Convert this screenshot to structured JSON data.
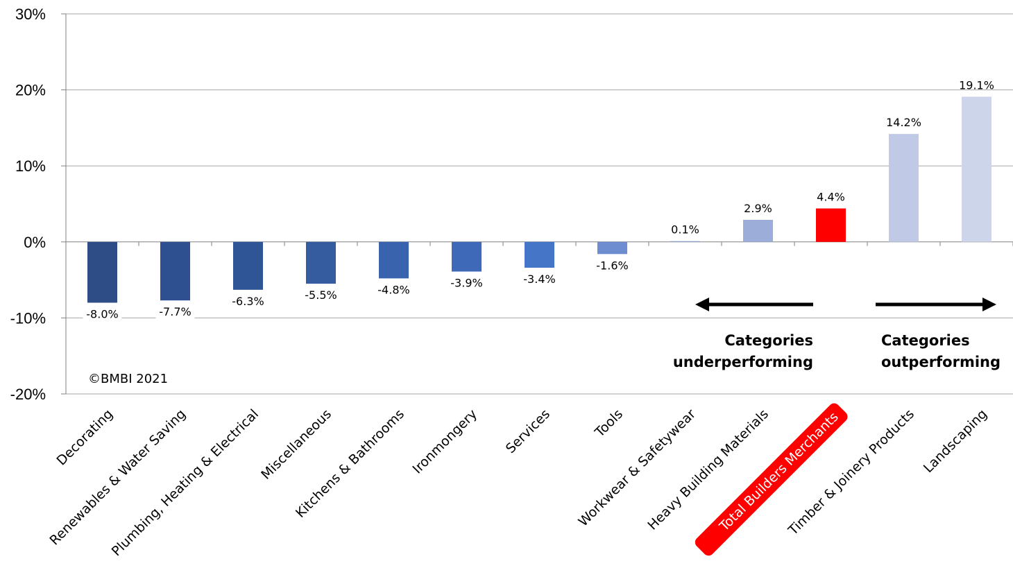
{
  "chart_data": {
    "type": "bar",
    "categories": [
      "Decorating",
      "Renewables & Water Saving",
      "Plumbing, Heating & Electrical",
      "Miscellaneous",
      "Kitchens & Bathrooms",
      "Ironmongery",
      "Services",
      "Tools",
      "Workwear & Safetywear",
      "Heavy Building Materials",
      "Total Builders Merchants",
      "Timber & Joinery Products",
      "Landscaping"
    ],
    "values": [
      -8.0,
      -7.7,
      -6.3,
      -5.5,
      -4.8,
      -3.9,
      -3.4,
      -1.6,
      0.1,
      2.9,
      4.4,
      14.2,
      19.1
    ],
    "data_labels": [
      "-8.0%",
      "-7.7%",
      "-6.3%",
      "-5.5%",
      "-4.8%",
      "-3.9%",
      "-3.4%",
      "-1.6%",
      "0.1%",
      "2.9%",
      "4.4%",
      "14.2%",
      "19.1%"
    ],
    "colors": [
      "#2e4d87",
      "#2f5090",
      "#305597",
      "#345c9f",
      "#3a63ad",
      "#3d69b8",
      "#4475c6",
      "#6e8cd0",
      "#8fa3d6",
      "#9cadd9",
      "#ff0000",
      "#c0cae6",
      "#cdd5ea"
    ],
    "highlight_index": 10,
    "highlight_color": "#ff0000",
    "ylim": [
      -20,
      30
    ],
    "yticks": [
      30,
      20,
      10,
      0,
      -10,
      -20
    ],
    "ytick_labels": [
      "30%",
      "20%",
      "10%",
      "0%",
      "-10%",
      "-20%"
    ],
    "grid": true,
    "title": "",
    "xlabel": "",
    "ylabel": ""
  },
  "annotations": {
    "copyright": "©BMBI 2021",
    "underperforming": [
      "Categories",
      "underperforming"
    ],
    "outperforming": [
      "Categories",
      "outperforming"
    ]
  }
}
